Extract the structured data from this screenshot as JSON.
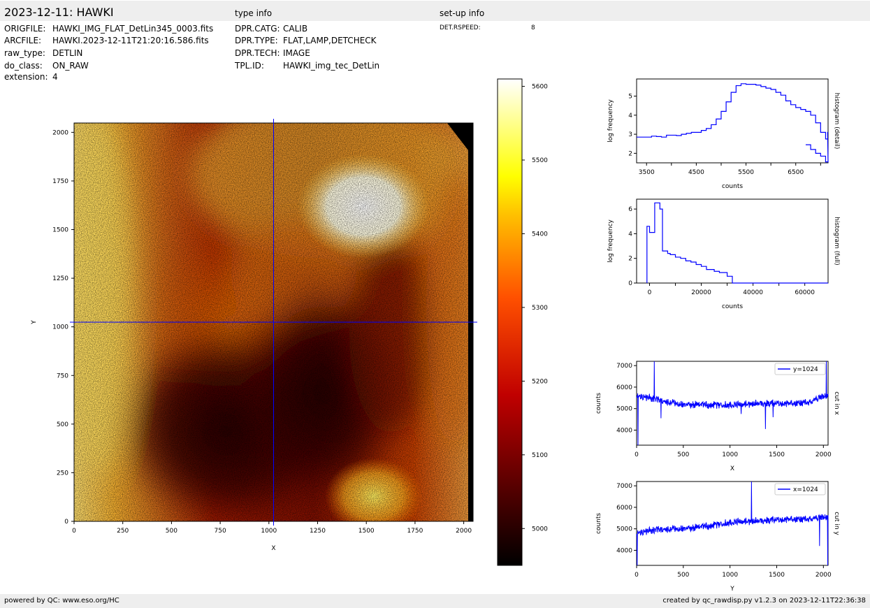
{
  "header": {
    "title": "2023-12-11: HAWKI",
    "type_info_title": "type info",
    "setup_info_title": "set-up info"
  },
  "file_info": [
    {
      "key": "ORIGFILE:",
      "value": "HAWKI_IMG_FLAT_DetLin345_0003.fits"
    },
    {
      "key": "ARCFILE:",
      "value": "HAWKI.2023-12-11T21:20:16.586.fits"
    },
    {
      "key": "raw_type:",
      "value": "DETLIN"
    },
    {
      "key": "do_class:",
      "value": "ON_RAW"
    },
    {
      "key": "extension:",
      "value": "4"
    }
  ],
  "type_info": [
    {
      "key": "DPR.CATG:",
      "value": "CALIB"
    },
    {
      "key": "DPR.TYPE:",
      "value": "FLAT,LAMP,DETCHECK"
    },
    {
      "key": "DPR.TECH:",
      "value": "IMAGE"
    },
    {
      "key": "TPL.ID:",
      "value": "HAWKI_img_tec_DetLin"
    }
  ],
  "setup_info": [
    {
      "key": "DET.RSPEED:",
      "value": "8"
    }
  ],
  "footer": {
    "left": "powered by QC: www.eso.org/HC",
    "right": "created by qc_rawdisp.py v1.2.3 on 2023-12-11T22:36:38"
  },
  "colors": {
    "line": "#0000ff",
    "band": "#eeeeee"
  },
  "chart_data": [
    {
      "type": "heatmap",
      "xlabel": "X",
      "ylabel": "Y",
      "xlim": [
        0,
        2048
      ],
      "ylim": [
        0,
        2048
      ],
      "xticks": [
        0,
        250,
        500,
        750,
        1000,
        1250,
        1500,
        1750,
        2000
      ],
      "yticks": [
        0,
        250,
        500,
        750,
        1000,
        1250,
        1500,
        1750,
        2000
      ],
      "crosshair": {
        "x": 1024,
        "y": 1024
      },
      "colorbar": {
        "range": [
          4950,
          5610
        ],
        "ticks": [
          5000,
          5100,
          5200,
          5300,
          5400,
          5500,
          5600
        ]
      },
      "colormap": "hot"
    },
    {
      "type": "line",
      "xlabel": "counts",
      "ylabel": "log frequency",
      "side_label": "histogram (detail)",
      "xlim": [
        3300,
        7150
      ],
      "ylim": [
        1.5,
        5.9
      ],
      "xticks": [
        3500,
        4500,
        5500,
        6500
      ],
      "xminor": [
        4000,
        5000,
        6000,
        7000
      ],
      "yticks": [
        2,
        3,
        4,
        5
      ],
      "x": [
        3300,
        3400,
        3500,
        3600,
        3700,
        3800,
        3900,
        4000,
        4100,
        4200,
        4300,
        4400,
        4500,
        4600,
        4700,
        4800,
        4900,
        5000,
        5100,
        5200,
        5300,
        5400,
        5500,
        5600,
        5700,
        5800,
        5900,
        6000,
        6100,
        6200,
        6300,
        6400,
        6500,
        6600,
        6700,
        6800,
        6900,
        7000,
        7100
      ],
      "y": [
        2.85,
        2.85,
        2.85,
        2.9,
        2.88,
        2.85,
        2.95,
        2.95,
        2.93,
        3.0,
        3.05,
        3.1,
        3.1,
        3.2,
        3.3,
        3.5,
        3.8,
        4.2,
        4.7,
        5.2,
        5.55,
        5.65,
        5.62,
        5.62,
        5.58,
        5.5,
        5.42,
        5.35,
        5.2,
        5.05,
        4.75,
        4.55,
        4.4,
        4.3,
        4.2,
        4.0,
        3.6,
        3.1,
        2.75
      ],
      "tail": [
        {
          "x": 6700,
          "y": 2.45
        },
        {
          "x": 6800,
          "y": 2.2
        },
        {
          "x": 6900,
          "y": 2.0
        },
        {
          "x": 7000,
          "y": 1.85
        },
        {
          "x": 7100,
          "y": 1.55
        }
      ]
    },
    {
      "type": "line",
      "xlabel": "counts",
      "ylabel": "log frequency",
      "side_label": "histogram (full)",
      "xlim": [
        -5000,
        69000
      ],
      "ylim": [
        0,
        6.8
      ],
      "xticks": [
        0,
        20000,
        40000,
        60000
      ],
      "xminor": [
        10000,
        30000,
        50000
      ],
      "yticks": [
        0,
        2,
        4,
        6
      ],
      "x": [
        -1000,
        0,
        2000,
        4000,
        5000,
        7000,
        8000,
        10000,
        12000,
        14000,
        16000,
        18000,
        20000,
        22000,
        25000,
        27000,
        30000,
        32000
      ],
      "y": [
        4.6,
        4.1,
        6.5,
        6.0,
        2.6,
        2.4,
        2.3,
        2.1,
        2.0,
        1.8,
        1.7,
        1.5,
        1.35,
        1.1,
        0.95,
        0.85,
        0.55,
        0.0
      ],
      "tail_end": 69000
    },
    {
      "type": "line",
      "xlabel": "X",
      "ylabel": "counts",
      "side_label": "cut in x",
      "legend": "y=1024",
      "legend_position": "top-right",
      "xlim": [
        0,
        2050
      ],
      "ylim": [
        3300,
        7200
      ],
      "xticks": [
        0,
        500,
        1000,
        1500,
        2000
      ],
      "yticks": [
        4000,
        5000,
        6000,
        7000
      ],
      "baseline": [
        [
          0,
          5600
        ],
        [
          150,
          5480
        ],
        [
          300,
          5330
        ],
        [
          500,
          5200
        ],
        [
          800,
          5170
        ],
        [
          1100,
          5180
        ],
        [
          1300,
          5250
        ],
        [
          1500,
          5250
        ],
        [
          1700,
          5250
        ],
        [
          1850,
          5300
        ],
        [
          1950,
          5480
        ],
        [
          2030,
          5600
        ]
      ],
      "spikes": [
        {
          "x": 15,
          "y": 3300
        },
        {
          "x": 190,
          "y": 7200
        },
        {
          "x": 260,
          "y": 4550
        },
        {
          "x": 1120,
          "y": 4750
        },
        {
          "x": 1380,
          "y": 4050
        },
        {
          "x": 1460,
          "y": 4600
        },
        {
          "x": 2030,
          "y": 7200
        }
      ]
    },
    {
      "type": "line",
      "xlabel": "Y",
      "ylabel": "counts",
      "side_label": "cut in y",
      "legend": "x=1024",
      "legend_position": "top-right",
      "xlim": [
        0,
        2050
      ],
      "ylim": [
        3300,
        7200
      ],
      "xticks": [
        0,
        500,
        1000,
        1500,
        2000
      ],
      "yticks": [
        4000,
        5000,
        6000,
        7000
      ],
      "baseline": [
        [
          0,
          4800
        ],
        [
          200,
          4950
        ],
        [
          400,
          5000
        ],
        [
          600,
          5050
        ],
        [
          800,
          5150
        ],
        [
          1000,
          5300
        ],
        [
          1200,
          5350
        ],
        [
          1400,
          5400
        ],
        [
          1600,
          5450
        ],
        [
          1800,
          5450
        ],
        [
          1950,
          5500
        ],
        [
          2040,
          5550
        ]
      ],
      "spikes": [
        {
          "x": 5,
          "y": 3300
        },
        {
          "x": 1230,
          "y": 7200
        },
        {
          "x": 1960,
          "y": 4200
        },
        {
          "x": 2045,
          "y": 3300
        }
      ]
    }
  ]
}
